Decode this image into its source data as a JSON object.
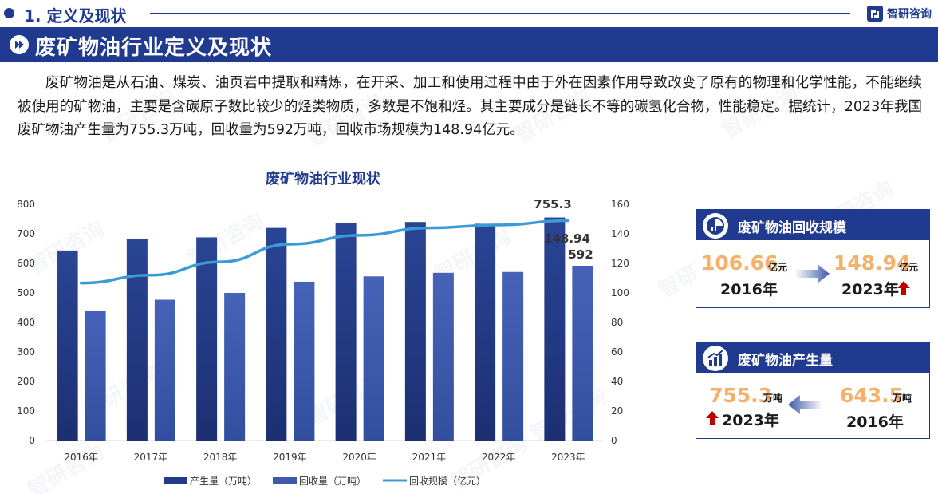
{
  "section": {
    "title": "1. 定义及现状"
  },
  "brand": {
    "name": "智研咨询"
  },
  "banner": {
    "title": "废矿物油行业定义及现状"
  },
  "intro": {
    "text": "废矿物油是从石油、煤炭、油页岩中提取和精炼，在开采、加工和使用过程中由于外在因素作用导致改变了原有的物理和化学性能，不能继续被使用的矿物油，主要是含碳原子数比较少的烃类物质，多数是不饱和烃。其主要成分是链长不等的碳氢化合物，性能稳定。据统计，2023年我国废矿物油产生量为755.3万吨，回收量为592万吨，回收市场规模为148.94亿元。"
  },
  "watermark": "智研咨询",
  "chart_data": {
    "type": "bar",
    "title": "废矿物油行业现状",
    "categories": [
      "2016年",
      "2017年",
      "2018年",
      "2019年",
      "2020年",
      "2021年",
      "2022年",
      "2023年"
    ],
    "series": [
      {
        "name": "产生量（万吨）",
        "kind": "bar",
        "axis": "left",
        "color": "#243b8a",
        "values": [
          643.5,
          683,
          688,
          720,
          736,
          740,
          734,
          755.3
        ]
      },
      {
        "name": "回收量（万吨）",
        "kind": "bar",
        "axis": "left",
        "color": "#3d5aad",
        "values": [
          438,
          477,
          500,
          538,
          556,
          568,
          571,
          592
        ]
      },
      {
        "name": "回收规模（亿元）",
        "kind": "line",
        "axis": "right",
        "color": "#3b9bd6",
        "values": [
          106.66,
          112,
          121,
          133,
          139,
          144,
          146,
          148.94
        ]
      }
    ],
    "y_left": {
      "ticks": [
        "0",
        "100",
        "200",
        "300",
        "400",
        "500",
        "600",
        "700",
        "800"
      ],
      "range": [
        0,
        800
      ]
    },
    "y_right": {
      "ticks": [
        "0",
        "20",
        "40",
        "60",
        "80",
        "100",
        "120",
        "140",
        "160"
      ],
      "range": [
        0,
        160
      ]
    },
    "labels": {
      "prod_2023": "755.3",
      "scale_2023": "148.94",
      "recy_2023": "592"
    },
    "grid": false,
    "legend_position": "bottom"
  },
  "card_recycle": {
    "title": "废矿物油回收规模",
    "icon": "pie-chart-icon",
    "left_value": "106.66",
    "left_unit": "亿元",
    "left_year": "2016年",
    "right_value": "148.94",
    "right_unit": "亿元",
    "right_year": "2023年",
    "accent_color": "#f5b06a",
    "up_color": "#c00000"
  },
  "card_output": {
    "title": "废矿物油产生量",
    "icon": "bar-chart-icon",
    "left_value": "755.3",
    "left_unit": "万吨",
    "left_year": "2023年",
    "right_value": "643.5",
    "right_unit": "万吨",
    "right_year": "2016年",
    "accent_color": "#f5b06a",
    "up_color": "#c00000"
  }
}
